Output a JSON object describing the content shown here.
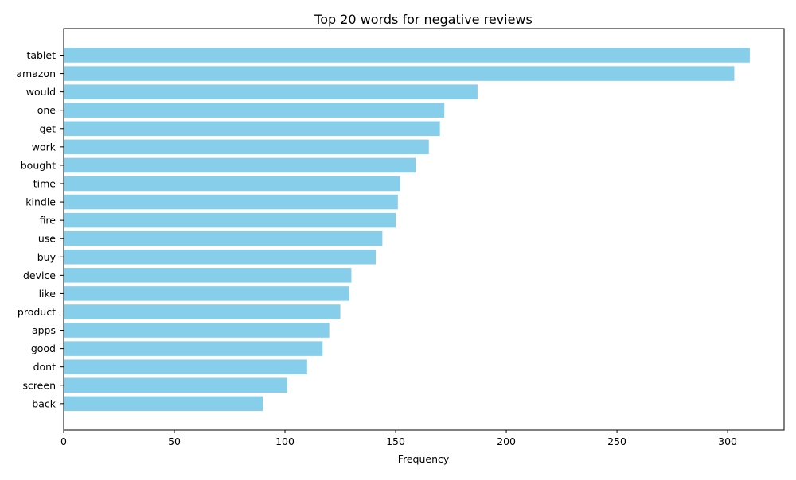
{
  "chart_data": {
    "type": "bar",
    "orientation": "horizontal",
    "title": "Top 20 words for negative reviews",
    "xlabel": "Frequency",
    "ylabel": "",
    "categories": [
      "tablet",
      "amazon",
      "would",
      "one",
      "get",
      "work",
      "bought",
      "time",
      "kindle",
      "fire",
      "use",
      "buy",
      "device",
      "like",
      "product",
      "apps",
      "good",
      "dont",
      "screen",
      "back"
    ],
    "values": [
      310,
      303,
      187,
      172,
      170,
      165,
      159,
      152,
      151,
      150,
      144,
      141,
      130,
      129,
      125,
      120,
      117,
      110,
      101,
      90
    ],
    "xlim": [
      0,
      325.5
    ],
    "xticks": [
      0,
      50,
      100,
      150,
      200,
      250,
      300
    ],
    "grid": false,
    "bar_color": "#87CEEB"
  }
}
